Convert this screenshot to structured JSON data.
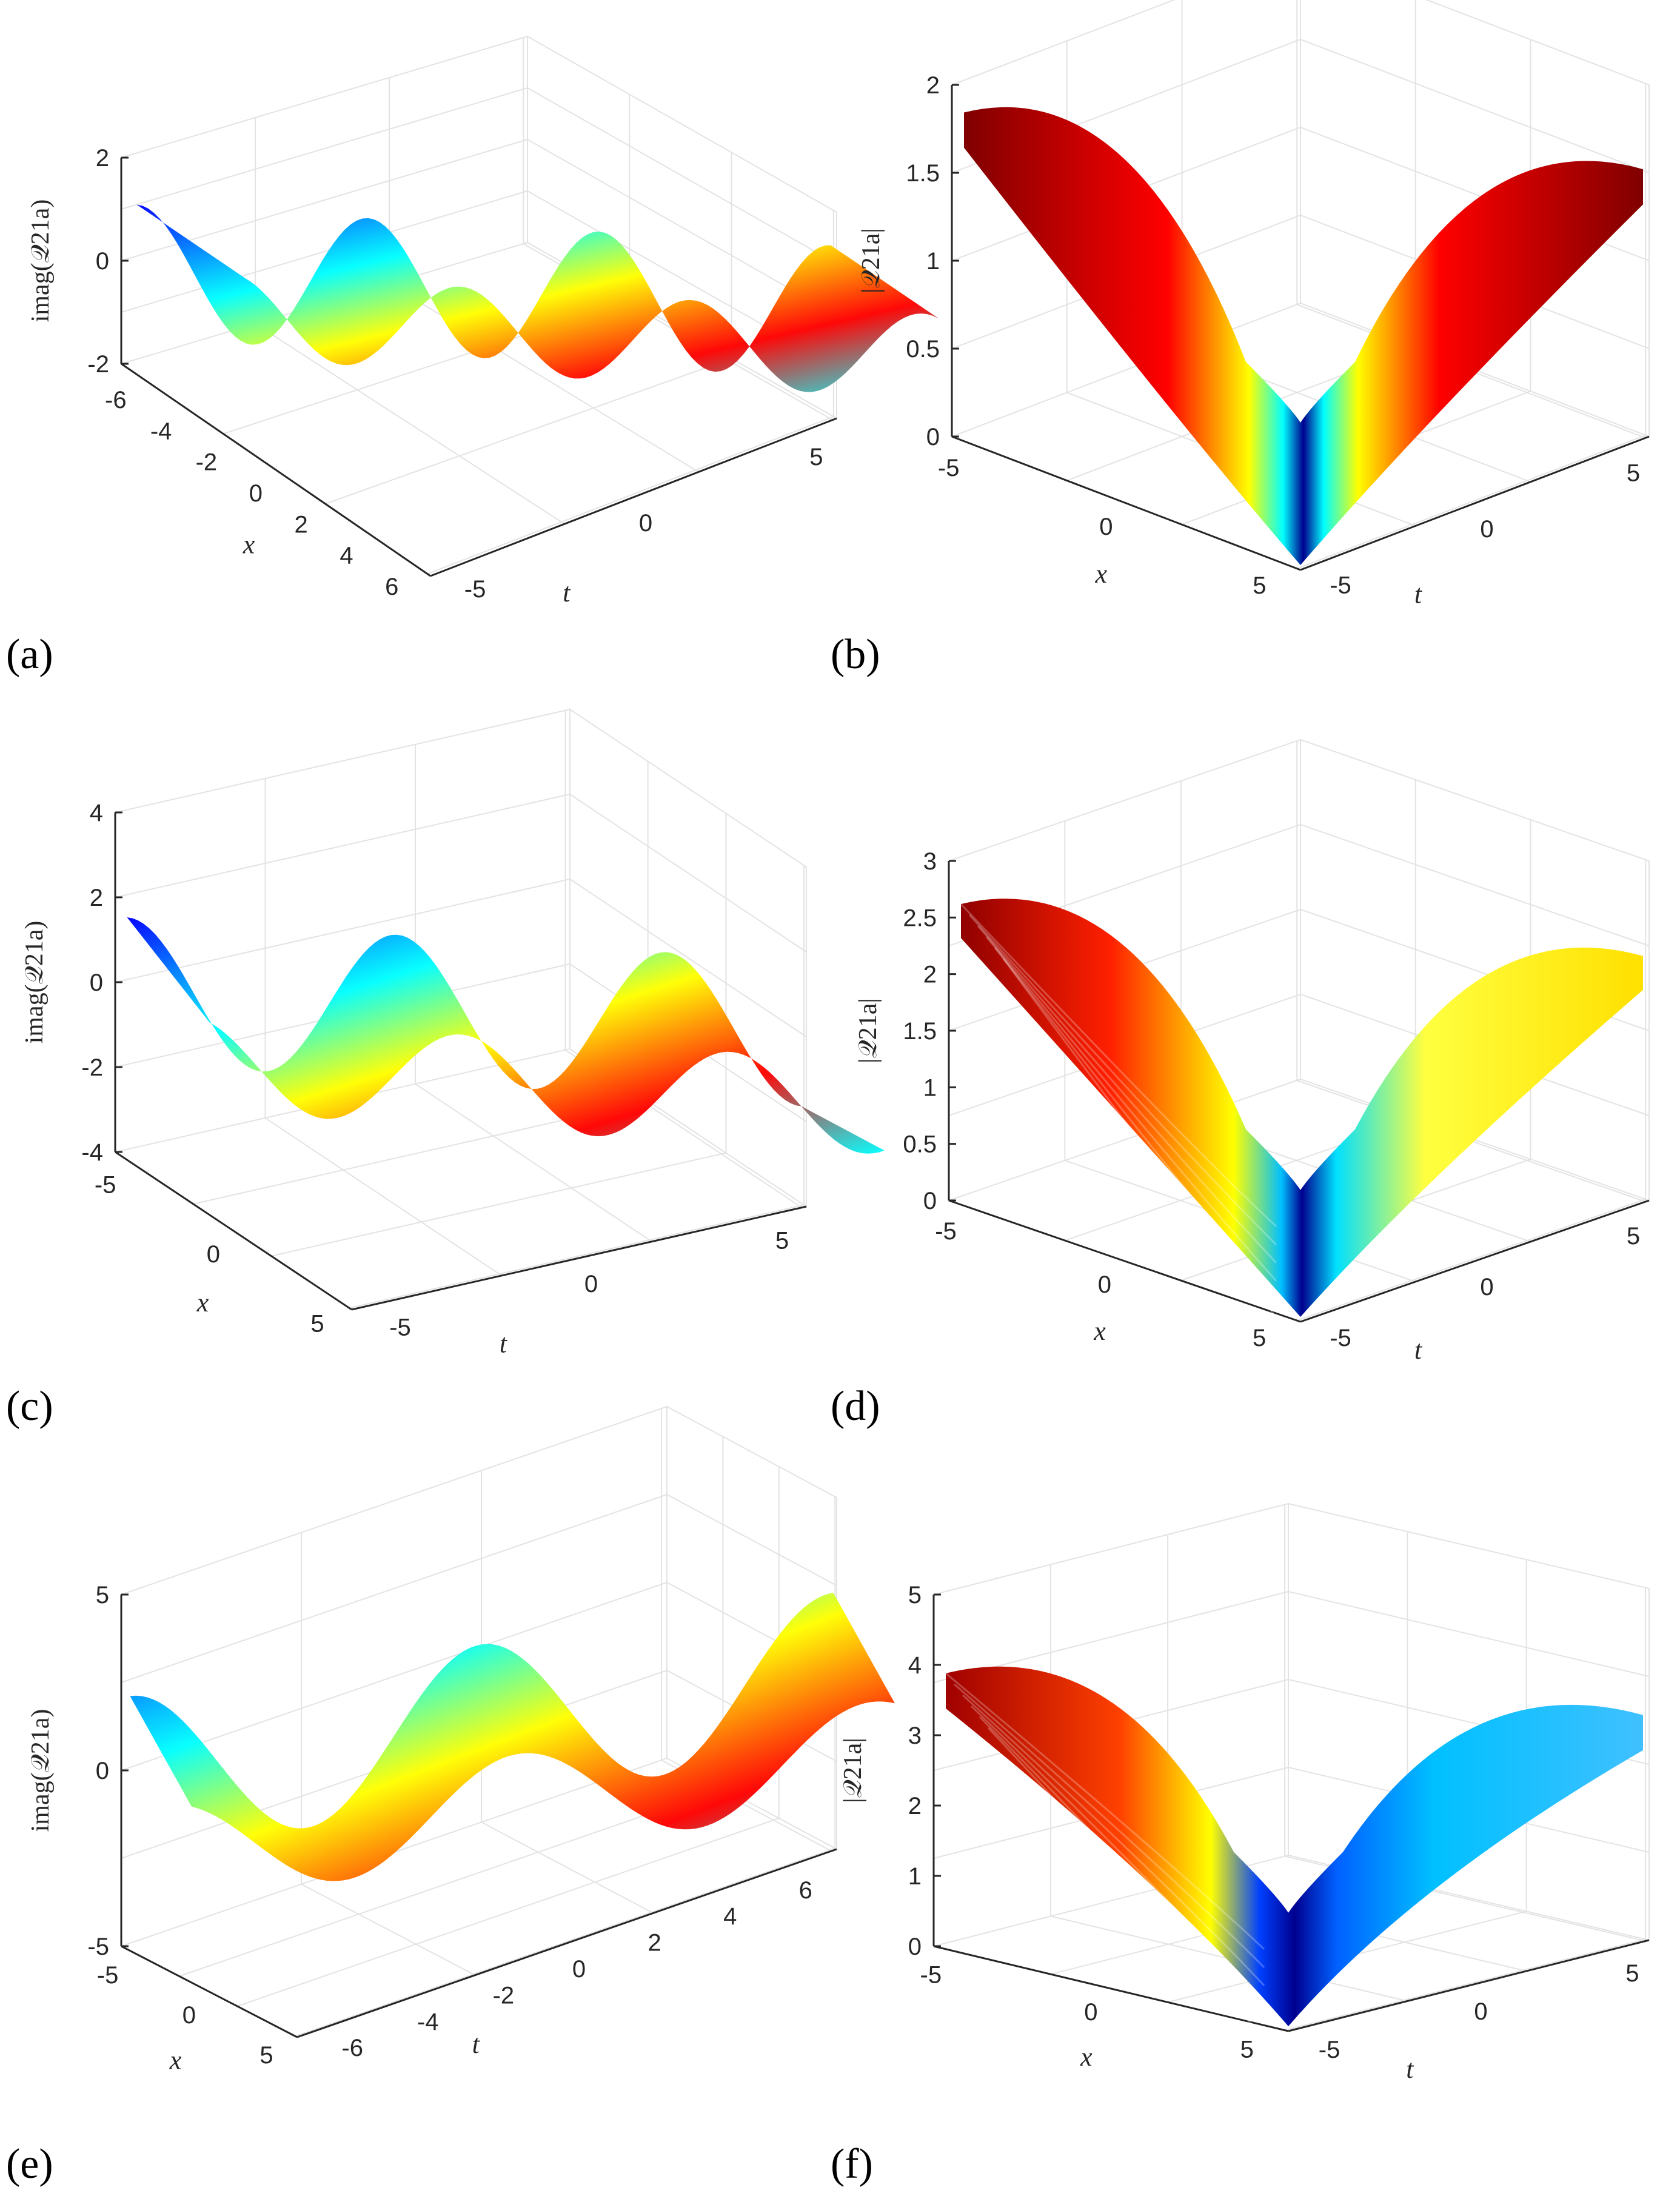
{
  "chart_data": [
    {
      "type": "surface",
      "panel_label": "(a)",
      "zlabel": "imag(𝒬21a)",
      "xlabel": "x",
      "ylabel": "t",
      "zlim": [
        -2,
        2
      ],
      "zticks": [
        "-2",
        "0",
        "2"
      ],
      "xticks": [
        "-6",
        "-4",
        "-2",
        "0",
        "2",
        "4",
        "6"
      ],
      "yticks": [
        "-5",
        "0",
        "5"
      ],
      "colormap": "jet",
      "sample_values": {
        "x": [
          -6,
          -3,
          0,
          3,
          6
        ],
        "z_range": [
          -2,
          2
        ]
      }
    },
    {
      "type": "surface",
      "panel_label": "(b)",
      "zlabel": "|𝒬21a|",
      "xlabel": "x",
      "ylabel": "t",
      "zlim": [
        0,
        2
      ],
      "zticks": [
        "0",
        "0.5",
        "1",
        "1.5",
        "2"
      ],
      "xticks": [
        "-5",
        "0",
        "5"
      ],
      "yticks": [
        "-5",
        "0",
        "5"
      ],
      "colormap": "jet",
      "sample_values": {
        "plateau": 1.9,
        "minimum": 0
      }
    },
    {
      "type": "surface",
      "panel_label": "(c)",
      "zlabel": "imag(𝒬21a)",
      "xlabel": "x",
      "ylabel": "t",
      "zlim": [
        -4,
        4
      ],
      "zticks": [
        "-4",
        "-2",
        "0",
        "2",
        "4"
      ],
      "xticks": [
        "-5",
        "0",
        "5"
      ],
      "yticks": [
        "-5",
        "0",
        "5"
      ],
      "colormap": "jet",
      "sample_values": {
        "z_range": [
          -3.5,
          3
        ]
      }
    },
    {
      "type": "surface",
      "panel_label": "(d)",
      "zlabel": "|𝒬21a|",
      "xlabel": "x",
      "ylabel": "t",
      "zlim": [
        0,
        3
      ],
      "zticks": [
        "0",
        "0.5",
        "1",
        "1.5",
        "2",
        "2.5",
        "3"
      ],
      "xticks": [
        "-5",
        "0",
        "5"
      ],
      "yticks": [
        "-5",
        "0",
        "5"
      ],
      "colormap": "jet",
      "sample_values": {
        "plateau_max": 3.1,
        "minimum": 0
      }
    },
    {
      "type": "surface",
      "panel_label": "(e)",
      "zlabel": "imag(𝒬21a)",
      "xlabel": "x",
      "ylabel": "t",
      "zlim": [
        -5,
        5
      ],
      "zticks": [
        "-5",
        "0",
        "5"
      ],
      "xticks": [
        "-5",
        "0",
        "5"
      ],
      "yticks": [
        "-6",
        "-4",
        "-2",
        "0",
        "2",
        "4",
        "6"
      ],
      "colormap": "jet",
      "sample_values": {
        "z_range": [
          -5,
          4
        ]
      }
    },
    {
      "type": "surface",
      "panel_label": "(f)",
      "zlabel": "|𝒬21a|",
      "xlabel": "x",
      "ylabel": "t",
      "zlim": [
        0,
        5
      ],
      "zticks": [
        "0",
        "1",
        "2",
        "3",
        "4",
        "5"
      ],
      "xticks": [
        "-5",
        "0",
        "5"
      ],
      "yticks": [
        "-5",
        "0",
        "5"
      ],
      "colormap": "jet",
      "sample_values": {
        "plateau_max": 4.2,
        "minimum": 0
      }
    }
  ]
}
